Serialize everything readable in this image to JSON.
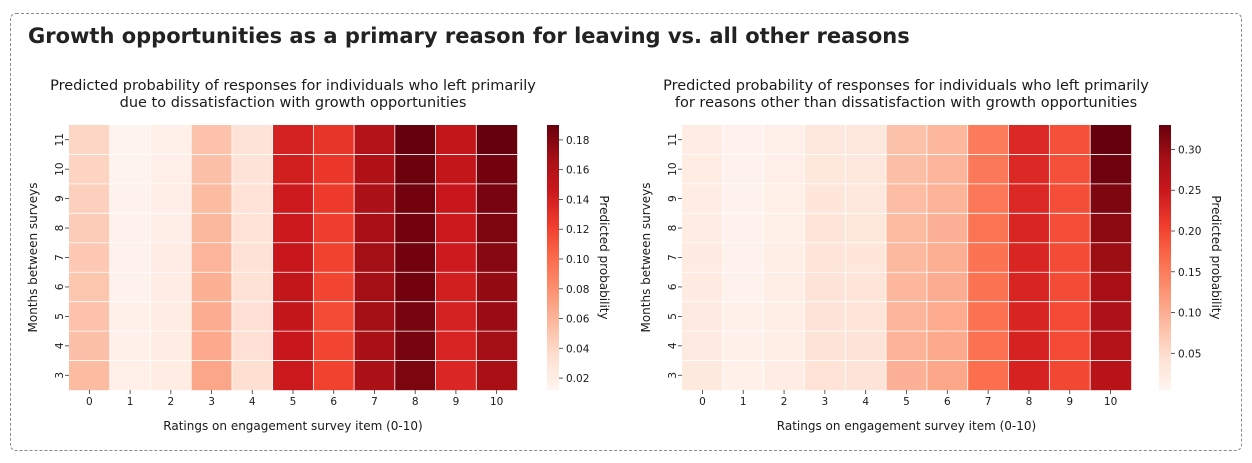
{
  "page": {
    "title": "Growth opportunities as a primary reason for leaving vs. all other reasons"
  },
  "colormap": {
    "name": "Reds",
    "stops": [
      "#fff5f0",
      "#fee0d2",
      "#fcbba1",
      "#fc9272",
      "#fb6a4a",
      "#ef3b2c",
      "#cb181d",
      "#a50f15",
      "#67000d"
    ]
  },
  "chart_data": [
    {
      "type": "heatmap",
      "title_lines": [
        "Predicted probability of responses for individuals who left primarily",
        "due to dissatisfaction with growth opportunities"
      ],
      "xlabel": "Ratings on engagement survey item (0-10)",
      "ylabel": "Months between surveys",
      "x_categories": [
        "0",
        "1",
        "2",
        "3",
        "4",
        "5",
        "6",
        "7",
        "8",
        "9",
        "10"
      ],
      "y_categories": [
        "11",
        "10",
        "9",
        "8",
        "7",
        "6",
        "5",
        "4",
        "3"
      ],
      "colorbar": {
        "label": "Predicted probability",
        "vmin": 0.012,
        "vmax": 0.19,
        "ticks": [
          0.02,
          0.04,
          0.06,
          0.08,
          0.1,
          0.12,
          0.14,
          0.16,
          0.18
        ],
        "tick_labels": [
          "0.02",
          "0.04",
          "0.06",
          "0.08",
          "0.10",
          "0.12",
          "0.14",
          "0.16",
          "0.18"
        ]
      },
      "values": [
        [
          0.04,
          0.014,
          0.018,
          0.052,
          0.03,
          0.14,
          0.128,
          0.16,
          0.19,
          0.15,
          0.19
        ],
        [
          0.042,
          0.014,
          0.018,
          0.054,
          0.03,
          0.142,
          0.126,
          0.162,
          0.188,
          0.15,
          0.186
        ],
        [
          0.044,
          0.015,
          0.019,
          0.056,
          0.031,
          0.144,
          0.124,
          0.164,
          0.186,
          0.148,
          0.184
        ],
        [
          0.046,
          0.015,
          0.019,
          0.058,
          0.031,
          0.146,
          0.122,
          0.166,
          0.186,
          0.146,
          0.182
        ],
        [
          0.048,
          0.016,
          0.02,
          0.06,
          0.032,
          0.148,
          0.12,
          0.168,
          0.186,
          0.144,
          0.178
        ],
        [
          0.05,
          0.016,
          0.02,
          0.062,
          0.032,
          0.15,
          0.118,
          0.168,
          0.186,
          0.142,
          0.174
        ],
        [
          0.052,
          0.017,
          0.021,
          0.064,
          0.033,
          0.15,
          0.116,
          0.168,
          0.184,
          0.14,
          0.172
        ],
        [
          0.054,
          0.017,
          0.021,
          0.066,
          0.033,
          0.148,
          0.118,
          0.166,
          0.184,
          0.138,
          0.168
        ],
        [
          0.056,
          0.018,
          0.022,
          0.068,
          0.034,
          0.146,
          0.12,
          0.164,
          0.182,
          0.136,
          0.166
        ]
      ]
    },
    {
      "type": "heatmap",
      "title_lines": [
        "Predicted probability of responses for individuals who left primarily",
        "for reasons other than dissatisfaction with growth opportunities"
      ],
      "xlabel": "Ratings on engagement survey item (0-10)",
      "ylabel": "Months between surveys",
      "x_categories": [
        "0",
        "1",
        "2",
        "3",
        "4",
        "5",
        "6",
        "7",
        "8",
        "9",
        "10"
      ],
      "y_categories": [
        "11",
        "10",
        "9",
        "8",
        "7",
        "6",
        "5",
        "4",
        "3"
      ],
      "colorbar": {
        "label": "Predicted probability",
        "vmin": 0.005,
        "vmax": 0.33,
        "ticks": [
          0.05,
          0.1,
          0.15,
          0.2,
          0.25,
          0.3
        ],
        "tick_labels": [
          "0.05",
          "0.10",
          "0.15",
          "0.20",
          "0.25",
          "0.30"
        ]
      },
      "values": [
        [
          0.02,
          0.01,
          0.016,
          0.032,
          0.03,
          0.08,
          0.09,
          0.15,
          0.23,
          0.19,
          0.33
        ],
        [
          0.021,
          0.01,
          0.016,
          0.033,
          0.031,
          0.082,
          0.092,
          0.152,
          0.23,
          0.19,
          0.325
        ],
        [
          0.022,
          0.011,
          0.017,
          0.034,
          0.032,
          0.084,
          0.094,
          0.154,
          0.23,
          0.192,
          0.315
        ],
        [
          0.023,
          0.011,
          0.017,
          0.035,
          0.033,
          0.086,
          0.096,
          0.156,
          0.232,
          0.192,
          0.305
        ],
        [
          0.024,
          0.012,
          0.018,
          0.036,
          0.034,
          0.088,
          0.098,
          0.158,
          0.232,
          0.194,
          0.295
        ],
        [
          0.025,
          0.012,
          0.018,
          0.037,
          0.035,
          0.09,
          0.1,
          0.158,
          0.234,
          0.194,
          0.285
        ],
        [
          0.026,
          0.013,
          0.019,
          0.038,
          0.036,
          0.092,
          0.102,
          0.16,
          0.234,
          0.196,
          0.28
        ],
        [
          0.027,
          0.013,
          0.019,
          0.039,
          0.037,
          0.094,
          0.104,
          0.16,
          0.236,
          0.196,
          0.275
        ],
        [
          0.028,
          0.014,
          0.02,
          0.04,
          0.038,
          0.096,
          0.106,
          0.162,
          0.236,
          0.198,
          0.27
        ]
      ]
    }
  ]
}
